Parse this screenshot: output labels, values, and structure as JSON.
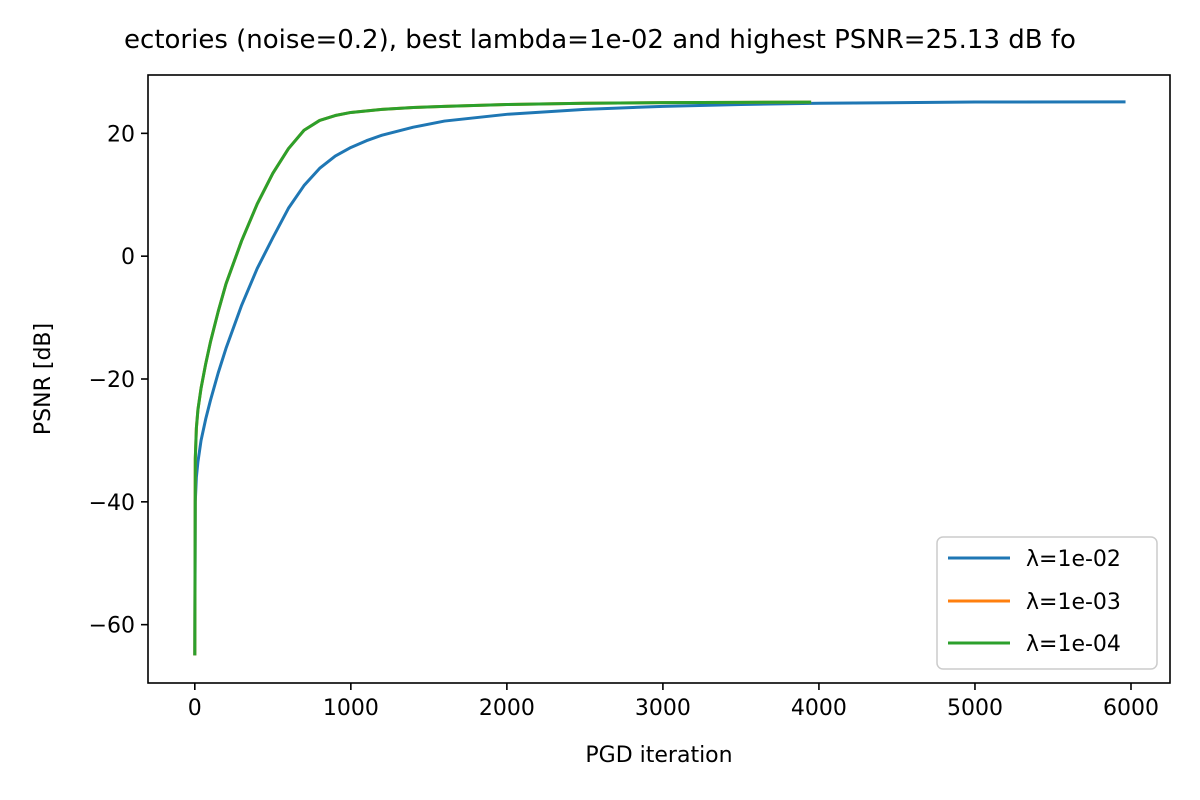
{
  "chart_data": {
    "type": "line",
    "title": "ectories (noise=0.2), best lambda=1e-02 and highest PSNR=25.13 dB fo",
    "xlabel": "PGD iteration",
    "ylabel": "PSNR [dB]",
    "xlim": [
      -300,
      6250
    ],
    "ylim": [
      -69.5,
      29.5
    ],
    "xticks": [
      0,
      1000,
      2000,
      3000,
      4000,
      5000,
      6000
    ],
    "yticks": [
      -60,
      -40,
      -20,
      0,
      20
    ],
    "xtick_labels": [
      "0",
      "1000",
      "2000",
      "3000",
      "4000",
      "5000",
      "6000"
    ],
    "ytick_labels": [
      "−60",
      "−40",
      "−20",
      "0",
      "20"
    ],
    "grid": false,
    "legend_position": "lower-right",
    "series": [
      {
        "name": "λ=1e-02",
        "color": "#1f77b4",
        "x": [
          0,
          3,
          10,
          20,
          40,
          70,
          100,
          150,
          200,
          300,
          400,
          500,
          600,
          700,
          800,
          900,
          1000,
          1100,
          1200,
          1400,
          1600,
          2000,
          2500,
          3000,
          3500,
          4000,
          5000,
          5965
        ],
        "y": [
          -65,
          -40,
          -36,
          -33.5,
          -30,
          -26.5,
          -23.5,
          -19,
          -15,
          -8,
          -2,
          3,
          7.8,
          11.5,
          14.3,
          16.3,
          17.7,
          18.8,
          19.7,
          21,
          22,
          23.1,
          23.9,
          24.4,
          24.7,
          24.9,
          25.1,
          25.13
        ]
      },
      {
        "name": "λ=1e-03",
        "color": "#ff7f0e",
        "x": [
          0,
          3,
          10,
          20,
          40,
          70,
          100,
          150,
          200,
          300,
          400,
          500,
          600,
          700,
          800,
          900,
          1000,
          1200,
          1400,
          1600,
          2000,
          2500,
          3000,
          3500,
          3950
        ],
        "y": [
          -65,
          -33,
          -28,
          -25,
          -21.5,
          -17.5,
          -14,
          -9,
          -4.5,
          2.5,
          8.5,
          13.5,
          17.5,
          20.5,
          22.1,
          22.9,
          23.4,
          23.9,
          24.2,
          24.4,
          24.7,
          24.9,
          25.0,
          25.05,
          25.08
        ]
      },
      {
        "name": "λ=1e-04",
        "color": "#2ca02c",
        "x": [
          0,
          3,
          10,
          20,
          40,
          70,
          100,
          150,
          200,
          300,
          400,
          500,
          600,
          700,
          800,
          900,
          1000,
          1200,
          1400,
          1600,
          2000,
          2500,
          3000,
          3500,
          3950
        ],
        "y": [
          -65,
          -33,
          -28,
          -25,
          -21.5,
          -17.5,
          -14,
          -9,
          -4.5,
          2.5,
          8.5,
          13.5,
          17.5,
          20.5,
          22.1,
          22.9,
          23.4,
          23.9,
          24.2,
          24.4,
          24.7,
          24.9,
          25.0,
          25.05,
          25.08
        ]
      }
    ]
  }
}
